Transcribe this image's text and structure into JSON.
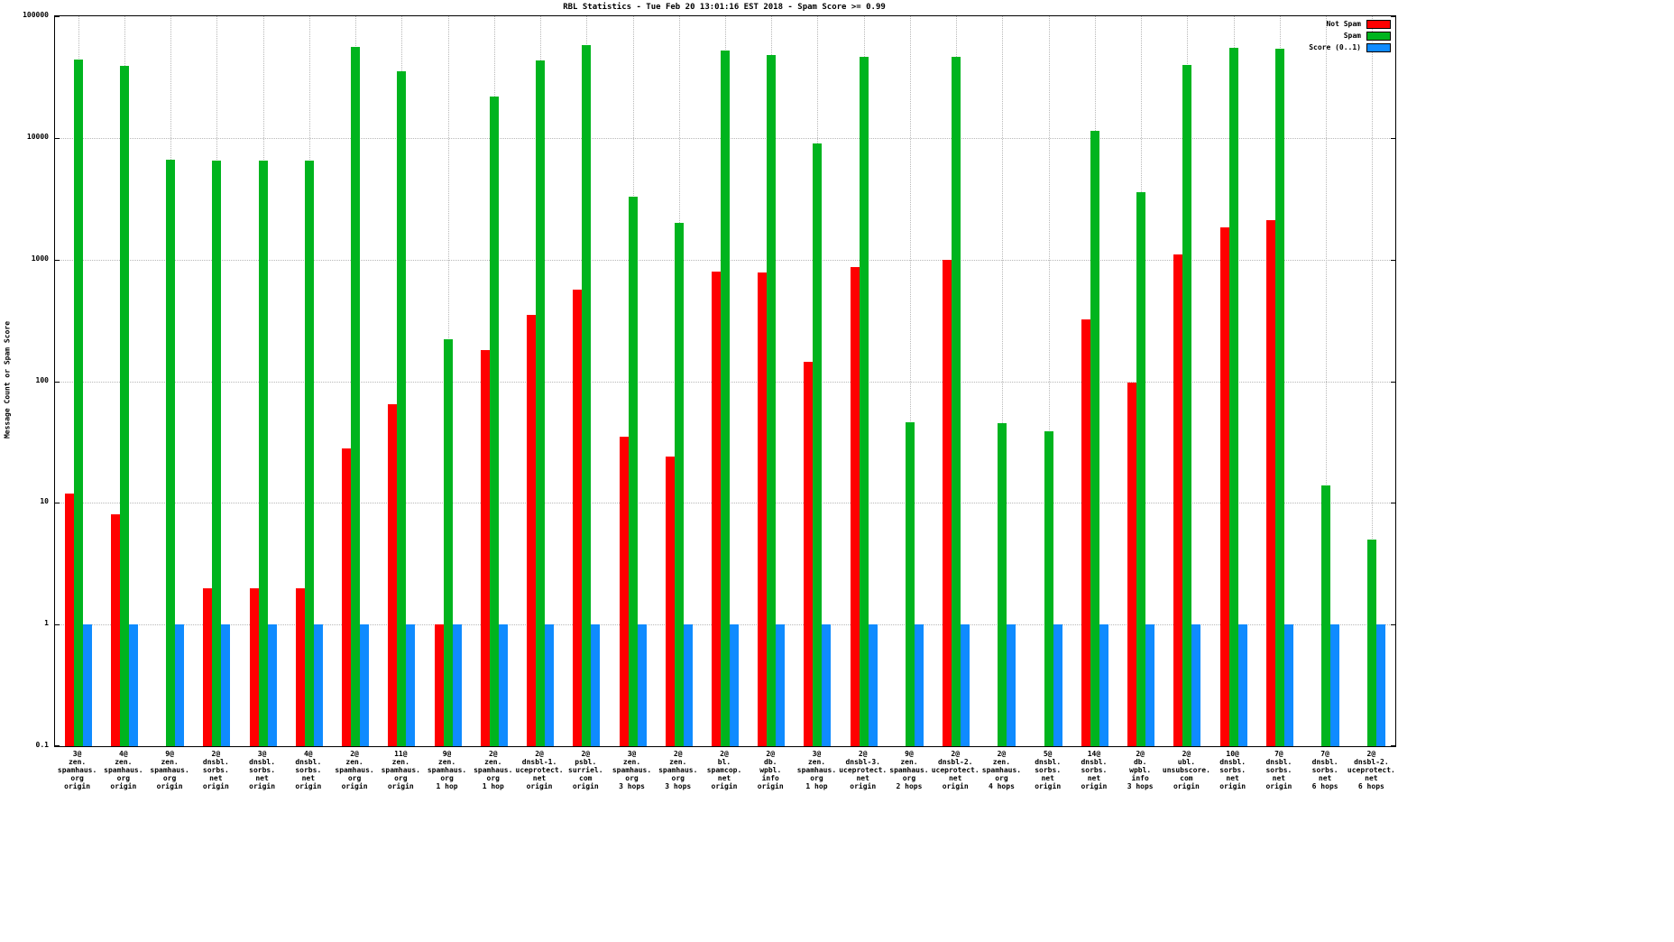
{
  "chart_data": {
    "type": "bar",
    "scale": "log10",
    "title": "RBL Statistics - Tue Feb 20 13:01:16 EST 2018 - Spam Score >= 0.99",
    "ylabel": "Message Count or Spam Score",
    "xlabel": "",
    "ylim": [
      0.1,
      100000
    ],
    "grid": true,
    "legend_position": "top-right",
    "y_ticks": [
      "100000",
      "10000",
      "1000",
      "100",
      "10",
      "1",
      "0.1"
    ],
    "categories": [
      [
        "3@",
        "zen.",
        "spamhaus.",
        "org",
        "origin"
      ],
      [
        "4@",
        "zen.",
        "spamhaus.",
        "org",
        "origin"
      ],
      [
        "9@",
        "zen.",
        "spamhaus.",
        "org",
        "origin"
      ],
      [
        "2@",
        "dnsbl.",
        "sorbs.",
        "net",
        "origin"
      ],
      [
        "3@",
        "dnsbl.",
        "sorbs.",
        "net",
        "origin"
      ],
      [
        "4@",
        "dnsbl.",
        "sorbs.",
        "net",
        "origin"
      ],
      [
        "2@",
        "zen.",
        "spamhaus.",
        "org",
        "origin"
      ],
      [
        "11@",
        "zen.",
        "spamhaus.",
        "org",
        "origin"
      ],
      [
        "9@",
        "zen.",
        "spamhaus.",
        "org",
        "1 hop"
      ],
      [
        "2@",
        "zen.",
        "spamhaus.",
        "org",
        "1 hop"
      ],
      [
        "2@",
        "dnsbl-1.",
        "uceprotect.",
        "net",
        "origin"
      ],
      [
        "2@",
        "psbl.",
        "surriel.",
        "com",
        "origin"
      ],
      [
        "3@",
        "zen.",
        "spamhaus.",
        "org",
        "3 hops"
      ],
      [
        "2@",
        "zen.",
        "spamhaus.",
        "org",
        "3 hops"
      ],
      [
        "2@",
        "bl.",
        "spamcop.",
        "net",
        "origin"
      ],
      [
        "2@",
        "db.",
        "wpbl.",
        "info",
        "origin"
      ],
      [
        "3@",
        "zen.",
        "spamhaus.",
        "org",
        "1 hop"
      ],
      [
        "2@",
        "dnsbl-3.",
        "uceprotect.",
        "net",
        "origin"
      ],
      [
        "9@",
        "zen.",
        "spamhaus.",
        "org",
        "2 hops"
      ],
      [
        "2@",
        "dnsbl-2.",
        "uceprotect.",
        "net",
        "origin"
      ],
      [
        "2@",
        "zen.",
        "spamhaus.",
        "org",
        "4 hops"
      ],
      [
        "5@",
        "dnsbl.",
        "sorbs.",
        "net",
        "origin"
      ],
      [
        "14@",
        "dnsbl.",
        "sorbs.",
        "net",
        "origin"
      ],
      [
        "2@",
        "db.",
        "wpbl.",
        "info",
        "3 hops"
      ],
      [
        "2@",
        "ubl.",
        "unsubscore.",
        "com",
        "origin"
      ],
      [
        "10@",
        "dnsbl.",
        "sorbs.",
        "net",
        "origin"
      ],
      [
        "7@",
        "dnsbl.",
        "sorbs.",
        "net",
        "origin"
      ],
      [
        "7@",
        "dnsbl.",
        "sorbs.",
        "net",
        "6 hops"
      ],
      [
        "2@",
        "dnsbl-2.",
        "uceprotect.",
        "net",
        "6 hops"
      ]
    ],
    "series": [
      {
        "name": "Not Spam",
        "color": "#ff0000",
        "values": [
          12,
          8,
          null,
          2,
          2,
          2,
          28,
          65,
          1,
          180,
          350,
          570,
          35,
          24,
          800,
          780,
          145,
          870,
          null,
          1000,
          null,
          null,
          320,
          98,
          1100,
          1850,
          2100,
          null,
          null
        ]
      },
      {
        "name": "Spam",
        "color": "#00b41e",
        "values": [
          44000,
          39000,
          6600,
          6500,
          6500,
          6500,
          56000,
          35000,
          220,
          22000,
          43000,
          58000,
          3300,
          2000,
          52000,
          48000,
          9000,
          46000,
          46,
          46000,
          45,
          39,
          11500,
          3600,
          40000,
          55000,
          54000,
          14,
          5
        ]
      },
      {
        "name": "Score (0..1)",
        "color": "#0f8bff",
        "values": [
          1,
          1,
          1,
          1,
          1,
          1,
          1,
          1,
          1,
          1,
          1,
          1,
          1,
          1,
          1,
          1,
          1,
          1,
          1,
          1,
          1,
          1,
          1,
          1,
          1,
          1,
          1,
          1,
          1
        ]
      }
    ]
  }
}
